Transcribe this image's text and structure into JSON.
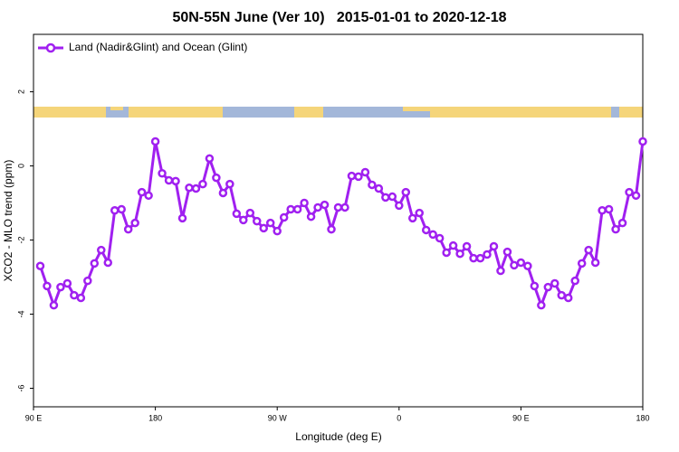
{
  "chart_data": {
    "type": "line",
    "title": "50N-55N June (Ver 10)   2015-01-01 to 2020-12-18",
    "xlabel": "Longitude (deg E)",
    "ylabel": "XCO2 - MLO trend (ppm)",
    "legend": "top-left",
    "grid": false,
    "xlim": [
      90,
      540
    ],
    "ylim": [
      -6.5,
      3.55
    ],
    "xticks": [
      {
        "value": 90,
        "label": "90 E"
      },
      180,
      {
        "value": 270,
        "label": "90 W"
      },
      {
        "value": 360,
        "label": "0"
      },
      {
        "value": 450,
        "label": "90 E"
      },
      {
        "value": 540,
        "label": "180"
      }
    ],
    "yticks": [
      -6,
      -4,
      -2,
      0,
      2
    ],
    "x": [
      95,
      100,
      105,
      110,
      115,
      120,
      125,
      130,
      135,
      140,
      145,
      150,
      155,
      160,
      165,
      170,
      175,
      180,
      185,
      190,
      195,
      200,
      205,
      210,
      215,
      220,
      225,
      230,
      235,
      240,
      245,
      250,
      255,
      260,
      265,
      270,
      275,
      280,
      285,
      290,
      295,
      300,
      305,
      310,
      315,
      320,
      325,
      330,
      335,
      340,
      345,
      350,
      355,
      360,
      365,
      370,
      375,
      380,
      385,
      390,
      395,
      400,
      405,
      410,
      415,
      420,
      425,
      430,
      435,
      440,
      445,
      450,
      455,
      460,
      465,
      470,
      475,
      480,
      485,
      490,
      495,
      500,
      505,
      510,
      515,
      520,
      525,
      530,
      535,
      540
    ],
    "series": [
      {
        "name": "Land (Nadir&Glint) and Ocean (Glint)",
        "color": "#a020f0",
        "values": [
          -2.7,
          -3.24,
          -3.76,
          -3.27,
          -3.17,
          -3.49,
          -3.56,
          -3.1,
          -2.63,
          -2.27,
          -2.61,
          -1.2,
          -1.17,
          -1.71,
          -1.54,
          -0.71,
          -0.8,
          0.66,
          -0.2,
          -0.39,
          -0.41,
          -1.41,
          -0.59,
          -0.61,
          -0.49,
          0.2,
          -0.32,
          -0.73,
          -0.49,
          -1.29,
          -1.46,
          -1.27,
          -1.49,
          -1.68,
          -1.54,
          -1.76,
          -1.39,
          -1.17,
          -1.17,
          -1.0,
          -1.37,
          -1.12,
          -1.05,
          -1.71,
          -1.12,
          -1.12,
          -0.27,
          -0.29,
          -0.17,
          -0.51,
          -0.61,
          -0.85,
          -0.83,
          -1.07,
          -0.71,
          -1.41,
          -1.27,
          -1.73,
          -1.85,
          -1.95,
          -2.34,
          -2.15,
          -2.37,
          -2.17,
          -2.49,
          -2.49,
          -2.39,
          -2.17,
          -2.83,
          -2.32,
          -2.68,
          -2.61,
          -2.7,
          -3.24,
          -3.76,
          -3.27,
          -3.17,
          -3.49,
          -3.56,
          -3.1,
          -2.63,
          -2.27,
          -2.61,
          -1.2,
          -1.17,
          -1.71,
          -1.54,
          -0.71,
          -0.8,
          0.66
        ]
      }
    ]
  }
}
